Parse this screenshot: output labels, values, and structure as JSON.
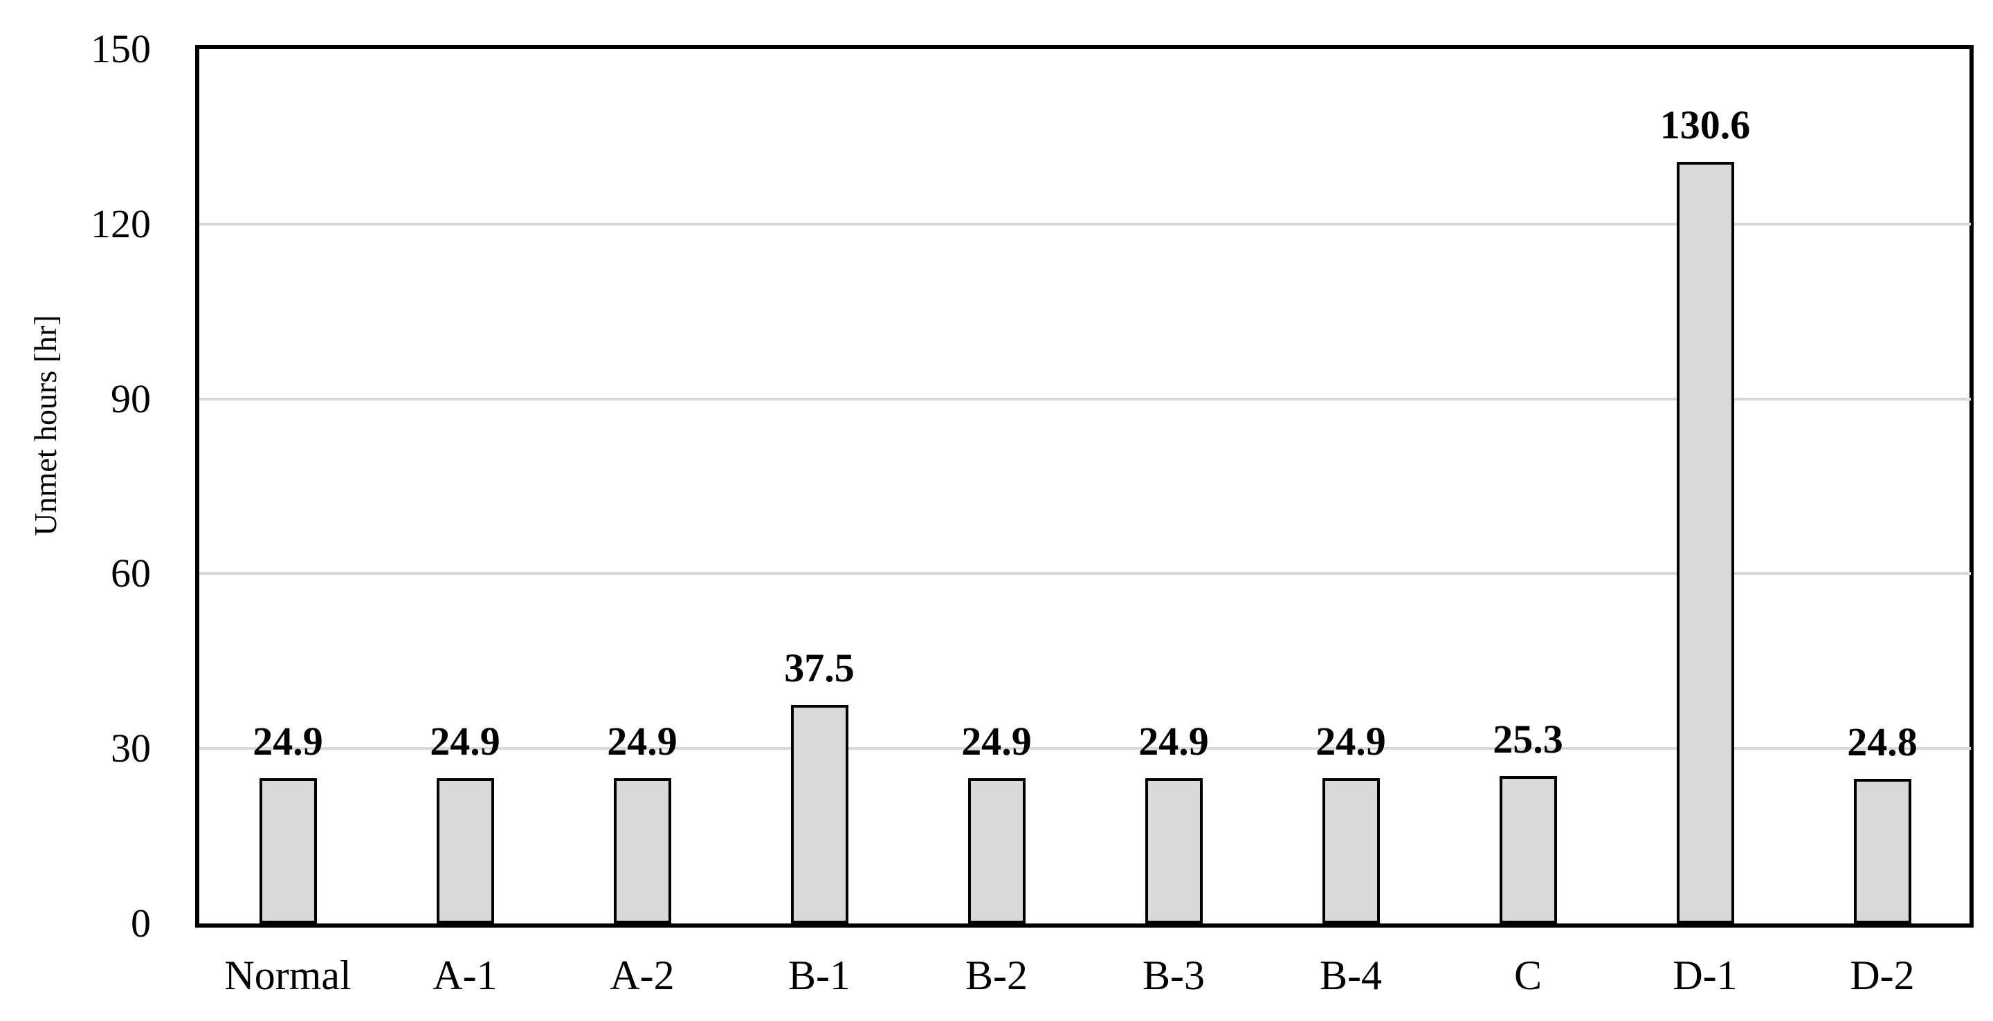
{
  "chart_data": {
    "type": "bar",
    "title": "",
    "xlabel": "",
    "ylabel": "Unmet hours [hr]",
    "categories": [
      "Normal",
      "A-1",
      "A-2",
      "B-1",
      "B-2",
      "B-3",
      "B-4",
      "C",
      "D-1",
      "D-2"
    ],
    "values": [
      24.9,
      24.9,
      24.9,
      37.5,
      24.9,
      24.9,
      24.9,
      25.3,
      130.6,
      24.8
    ],
    "data_labels": [
      "24.9",
      "24.9",
      "24.9",
      "37.5",
      "24.9",
      "24.9",
      "24.9",
      "25.3",
      "130.6",
      "24.8"
    ],
    "ylim": [
      0,
      150
    ],
    "yticks": [
      0,
      30,
      60,
      90,
      120,
      150
    ],
    "grid": true,
    "legend": false,
    "colors": {
      "bar_fill": "#d9d9d9",
      "bar_border": "#000000",
      "gridline": "#d9d9d9",
      "axis_border": "#000000",
      "text": "#000000",
      "background": "#ffffff"
    }
  }
}
